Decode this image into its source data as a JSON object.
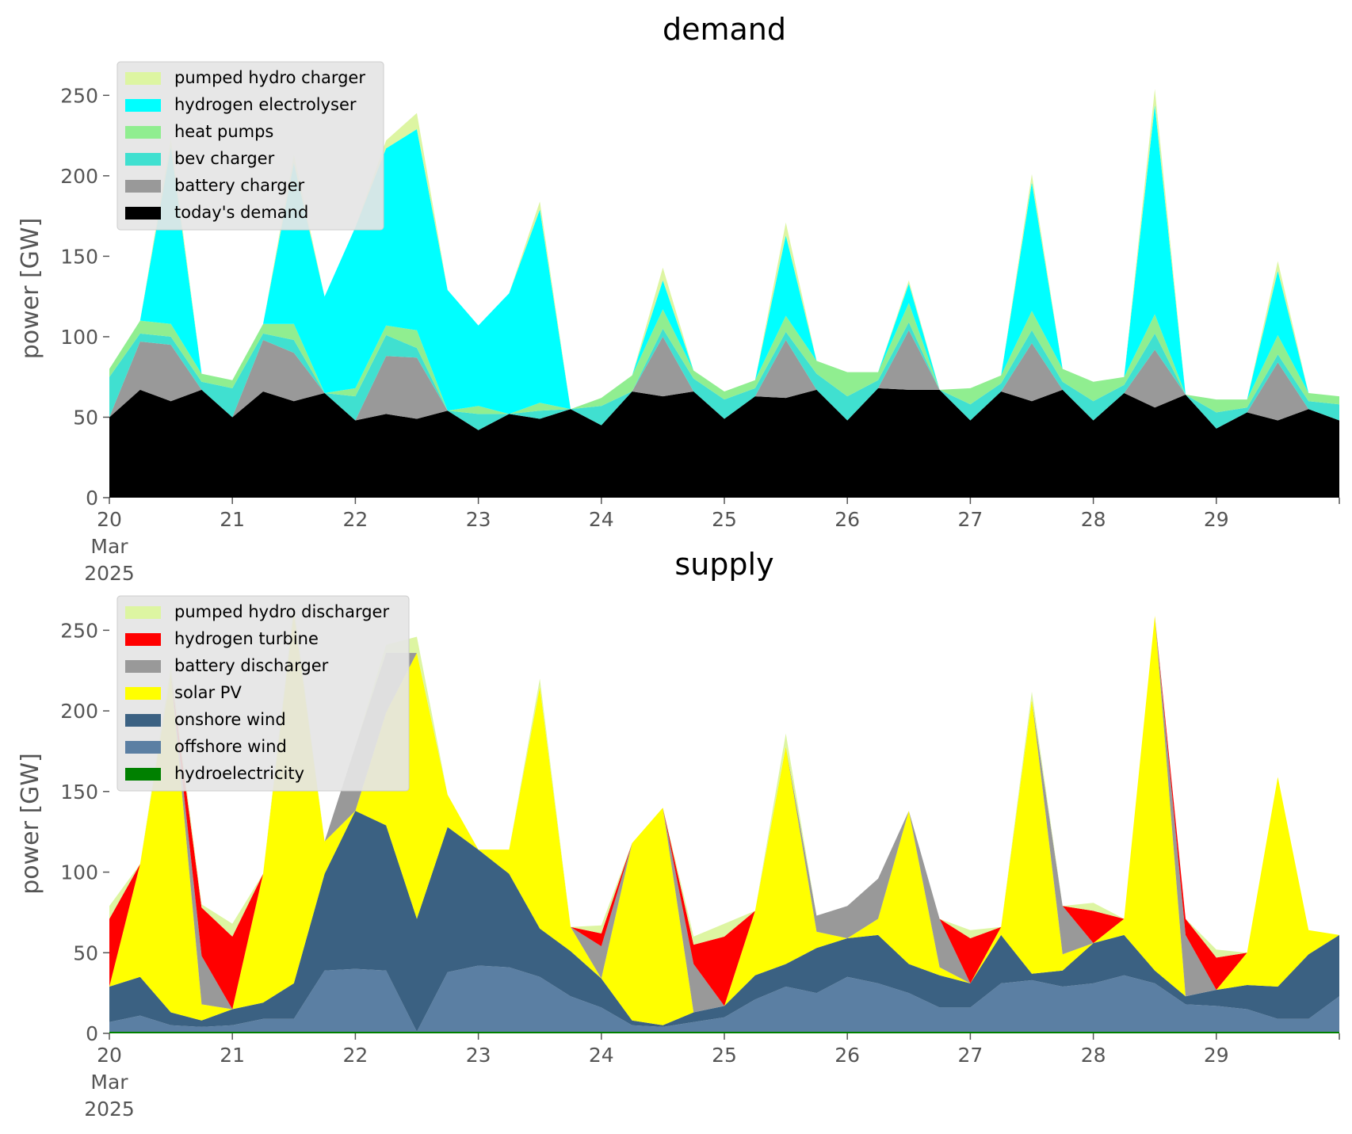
{
  "chart_data": [
    {
      "type": "area",
      "stacked": true,
      "title": "demand",
      "ylabel": "power [GW]",
      "ylim": [
        0,
        260
      ],
      "yticks": [
        0,
        50,
        100,
        150,
        200,
        250
      ],
      "xlim": [
        0,
        10
      ],
      "x_unit": "days from 20 Mar 2025",
      "xticks": [
        "20",
        "21",
        "22",
        "23",
        "24",
        "25",
        "26",
        "27",
        "28",
        "29"
      ],
      "x_first_tick_extra": [
        "Mar",
        "2025"
      ],
      "grid": false,
      "legend_position": "upper-left",
      "x": [
        0,
        0.25,
        0.5,
        0.75,
        1,
        1.25,
        1.5,
        1.75,
        2,
        2.25,
        2.5,
        2.75,
        3,
        3.25,
        3.5,
        3.75,
        4,
        4.25,
        4.5,
        4.75,
        5,
        5.25,
        5.5,
        5.75,
        6,
        6.25,
        6.5,
        6.75,
        7,
        7.25,
        7.5,
        7.75,
        8,
        8.25,
        8.5,
        8.75,
        9,
        9.25,
        9.5,
        9.75,
        10
      ],
      "series": [
        {
          "name": "today's demand",
          "color": "#000000",
          "values": [
            50,
            67,
            60,
            67,
            50,
            66,
            60,
            65,
            48,
            52,
            49,
            54,
            42,
            52,
            49,
            55,
            45,
            66,
            63,
            66,
            49,
            63,
            62,
            67,
            48,
            68,
            67,
            67,
            48,
            66,
            60,
            67,
            48,
            65,
            56,
            64,
            43,
            53,
            48,
            55,
            48
          ]
        },
        {
          "name": "battery charger",
          "color": "#999999",
          "values": [
            0,
            30,
            35,
            0,
            0,
            32,
            30,
            0,
            0,
            36,
            38,
            0,
            0,
            0,
            0,
            0,
            0,
            0,
            37,
            0,
            0,
            0,
            36,
            0,
            0,
            0,
            37,
            0,
            0,
            0,
            36,
            0,
            0,
            0,
            36,
            0,
            0,
            0,
            36,
            0,
            0
          ]
        },
        {
          "name": "bev charger",
          "color": "#40e0d0",
          "values": [
            25,
            5,
            5,
            5,
            18,
            4,
            8,
            0,
            15,
            13,
            6,
            0,
            10,
            0,
            5,
            0,
            12,
            0,
            5,
            8,
            12,
            5,
            5,
            10,
            15,
            5,
            5,
            0,
            10,
            5,
            8,
            5,
            12,
            5,
            10,
            0,
            10,
            3,
            5,
            5,
            10
          ]
        },
        {
          "name": "heat pumps",
          "color": "#90ee90",
          "values": [
            5,
            8,
            8,
            5,
            5,
            6,
            10,
            0,
            5,
            6,
            11,
            0,
            5,
            0,
            5,
            0,
            5,
            10,
            12,
            5,
            5,
            5,
            10,
            8,
            15,
            5,
            12,
            0,
            10,
            5,
            12,
            8,
            12,
            5,
            12,
            0,
            8,
            5,
            12,
            5,
            5
          ]
        },
        {
          "name": "hydrogen electrolyser",
          "color": "#00ffff",
          "values": [
            0,
            0,
            110,
            0,
            0,
            0,
            100,
            60,
            100,
            110,
            125,
            75,
            50,
            75,
            120,
            0,
            0,
            0,
            18,
            0,
            0,
            0,
            50,
            0,
            0,
            0,
            12,
            0,
            0,
            0,
            80,
            0,
            0,
            0,
            130,
            0,
            0,
            0,
            40,
            0,
            0
          ]
        },
        {
          "name": "pumped hydro charger",
          "color": "#ddf5a2",
          "values": [
            0,
            0,
            5,
            0,
            0,
            0,
            5,
            0,
            0,
            5,
            10,
            0,
            0,
            0,
            5,
            0,
            0,
            0,
            8,
            0,
            0,
            0,
            8,
            0,
            0,
            0,
            2,
            0,
            0,
            0,
            5,
            0,
            0,
            0,
            10,
            0,
            0,
            0,
            6,
            0,
            0
          ]
        }
      ]
    },
    {
      "type": "area",
      "stacked": true,
      "title": "supply",
      "ylabel": "power [GW]",
      "ylim": [
        0,
        260
      ],
      "yticks": [
        0,
        50,
        100,
        150,
        200,
        250
      ],
      "xlim": [
        0,
        10
      ],
      "x_unit": "days from 20 Mar 2025",
      "xticks": [
        "20",
        "21",
        "22",
        "23",
        "24",
        "25",
        "26",
        "27",
        "28",
        "29"
      ],
      "x_first_tick_extra": [
        "Mar",
        "2025"
      ],
      "grid": false,
      "legend_position": "upper-left",
      "x": [
        0,
        0.25,
        0.5,
        0.75,
        1,
        1.25,
        1.5,
        1.75,
        2,
        2.25,
        2.5,
        2.75,
        3,
        3.25,
        3.5,
        3.75,
        4,
        4.25,
        4.5,
        4.75,
        5,
        5.25,
        5.5,
        5.75,
        6,
        6.25,
        6.5,
        6.75,
        7,
        7.25,
        7.5,
        7.75,
        8,
        8.25,
        8.5,
        8.75,
        9,
        9.25,
        9.5,
        9.75,
        10
      ],
      "series": [
        {
          "name": "hydroelectricity",
          "color": "#008000",
          "values": [
            1,
            1,
            1,
            1,
            1,
            1,
            1,
            1,
            1,
            1,
            1,
            1,
            1,
            1,
            1,
            1,
            1,
            1,
            1,
            1,
            1,
            1,
            1,
            1,
            1,
            1,
            1,
            1,
            1,
            1,
            1,
            1,
            1,
            1,
            1,
            1,
            1,
            1,
            1,
            1,
            1
          ]
        },
        {
          "name": "offshore wind",
          "color": "#5b7fa3",
          "values": [
            6,
            10,
            4,
            3,
            4,
            8,
            8,
            38,
            39,
            38,
            0,
            37,
            41,
            40,
            34,
            22,
            15,
            4,
            3,
            6,
            9,
            20,
            28,
            24,
            34,
            30,
            24,
            15,
            15,
            30,
            32,
            28,
            30,
            35,
            30,
            17,
            16,
            14,
            8,
            8,
            22
          ]
        },
        {
          "name": "onshore wind",
          "color": "#3b6182",
          "values": [
            22,
            24,
            8,
            4,
            10,
            10,
            22,
            60,
            98,
            90,
            70,
            90,
            72,
            58,
            30,
            28,
            18,
            3,
            1,
            6,
            7,
            15,
            14,
            28,
            24,
            30,
            18,
            20,
            15,
            30,
            4,
            10,
            25,
            25,
            8,
            5,
            10,
            15,
            20,
            40,
            38
          ]
        },
        {
          "name": "solar PV",
          "color": "#ffff00",
          "values": [
            0,
            70,
            210,
            10,
            0,
            80,
            230,
            20,
            0,
            70,
            165,
            20,
            0,
            15,
            150,
            15,
            0,
            110,
            135,
            0,
            0,
            40,
            135,
            10,
            0,
            10,
            95,
            5,
            0,
            5,
            170,
            10,
            0,
            10,
            220,
            0,
            0,
            20,
            130,
            15,
            0
          ]
        },
        {
          "name": "battery discharger",
          "color": "#999999",
          "values": [
            0,
            0,
            0,
            30,
            0,
            0,
            0,
            0,
            40,
            37,
            0,
            0,
            0,
            0,
            0,
            0,
            20,
            0,
            0,
            30,
            0,
            0,
            0,
            10,
            20,
            25,
            0,
            30,
            0,
            0,
            0,
            30,
            0,
            0,
            0,
            38,
            0,
            0,
            0,
            0,
            0
          ]
        },
        {
          "name": "hydrogen turbine",
          "color": "#ff0000",
          "values": [
            42,
            0,
            0,
            30,
            45,
            0,
            0,
            0,
            0,
            0,
            0,
            0,
            0,
            0,
            0,
            0,
            8,
            0,
            0,
            12,
            43,
            0,
            0,
            0,
            0,
            0,
            0,
            0,
            28,
            0,
            0,
            0,
            20,
            0,
            0,
            10,
            20,
            0,
            0,
            0,
            0
          ]
        },
        {
          "name": "pumped hydro discharger",
          "color": "#ddf5a2",
          "values": [
            8,
            0,
            5,
            2,
            8,
            0,
            5,
            0,
            0,
            5,
            10,
            0,
            0,
            0,
            5,
            0,
            5,
            0,
            0,
            5,
            8,
            0,
            8,
            0,
            0,
            0,
            0,
            0,
            5,
            0,
            5,
            0,
            5,
            0,
            0,
            0,
            5,
            0,
            0,
            0,
            0
          ]
        }
      ]
    }
  ]
}
